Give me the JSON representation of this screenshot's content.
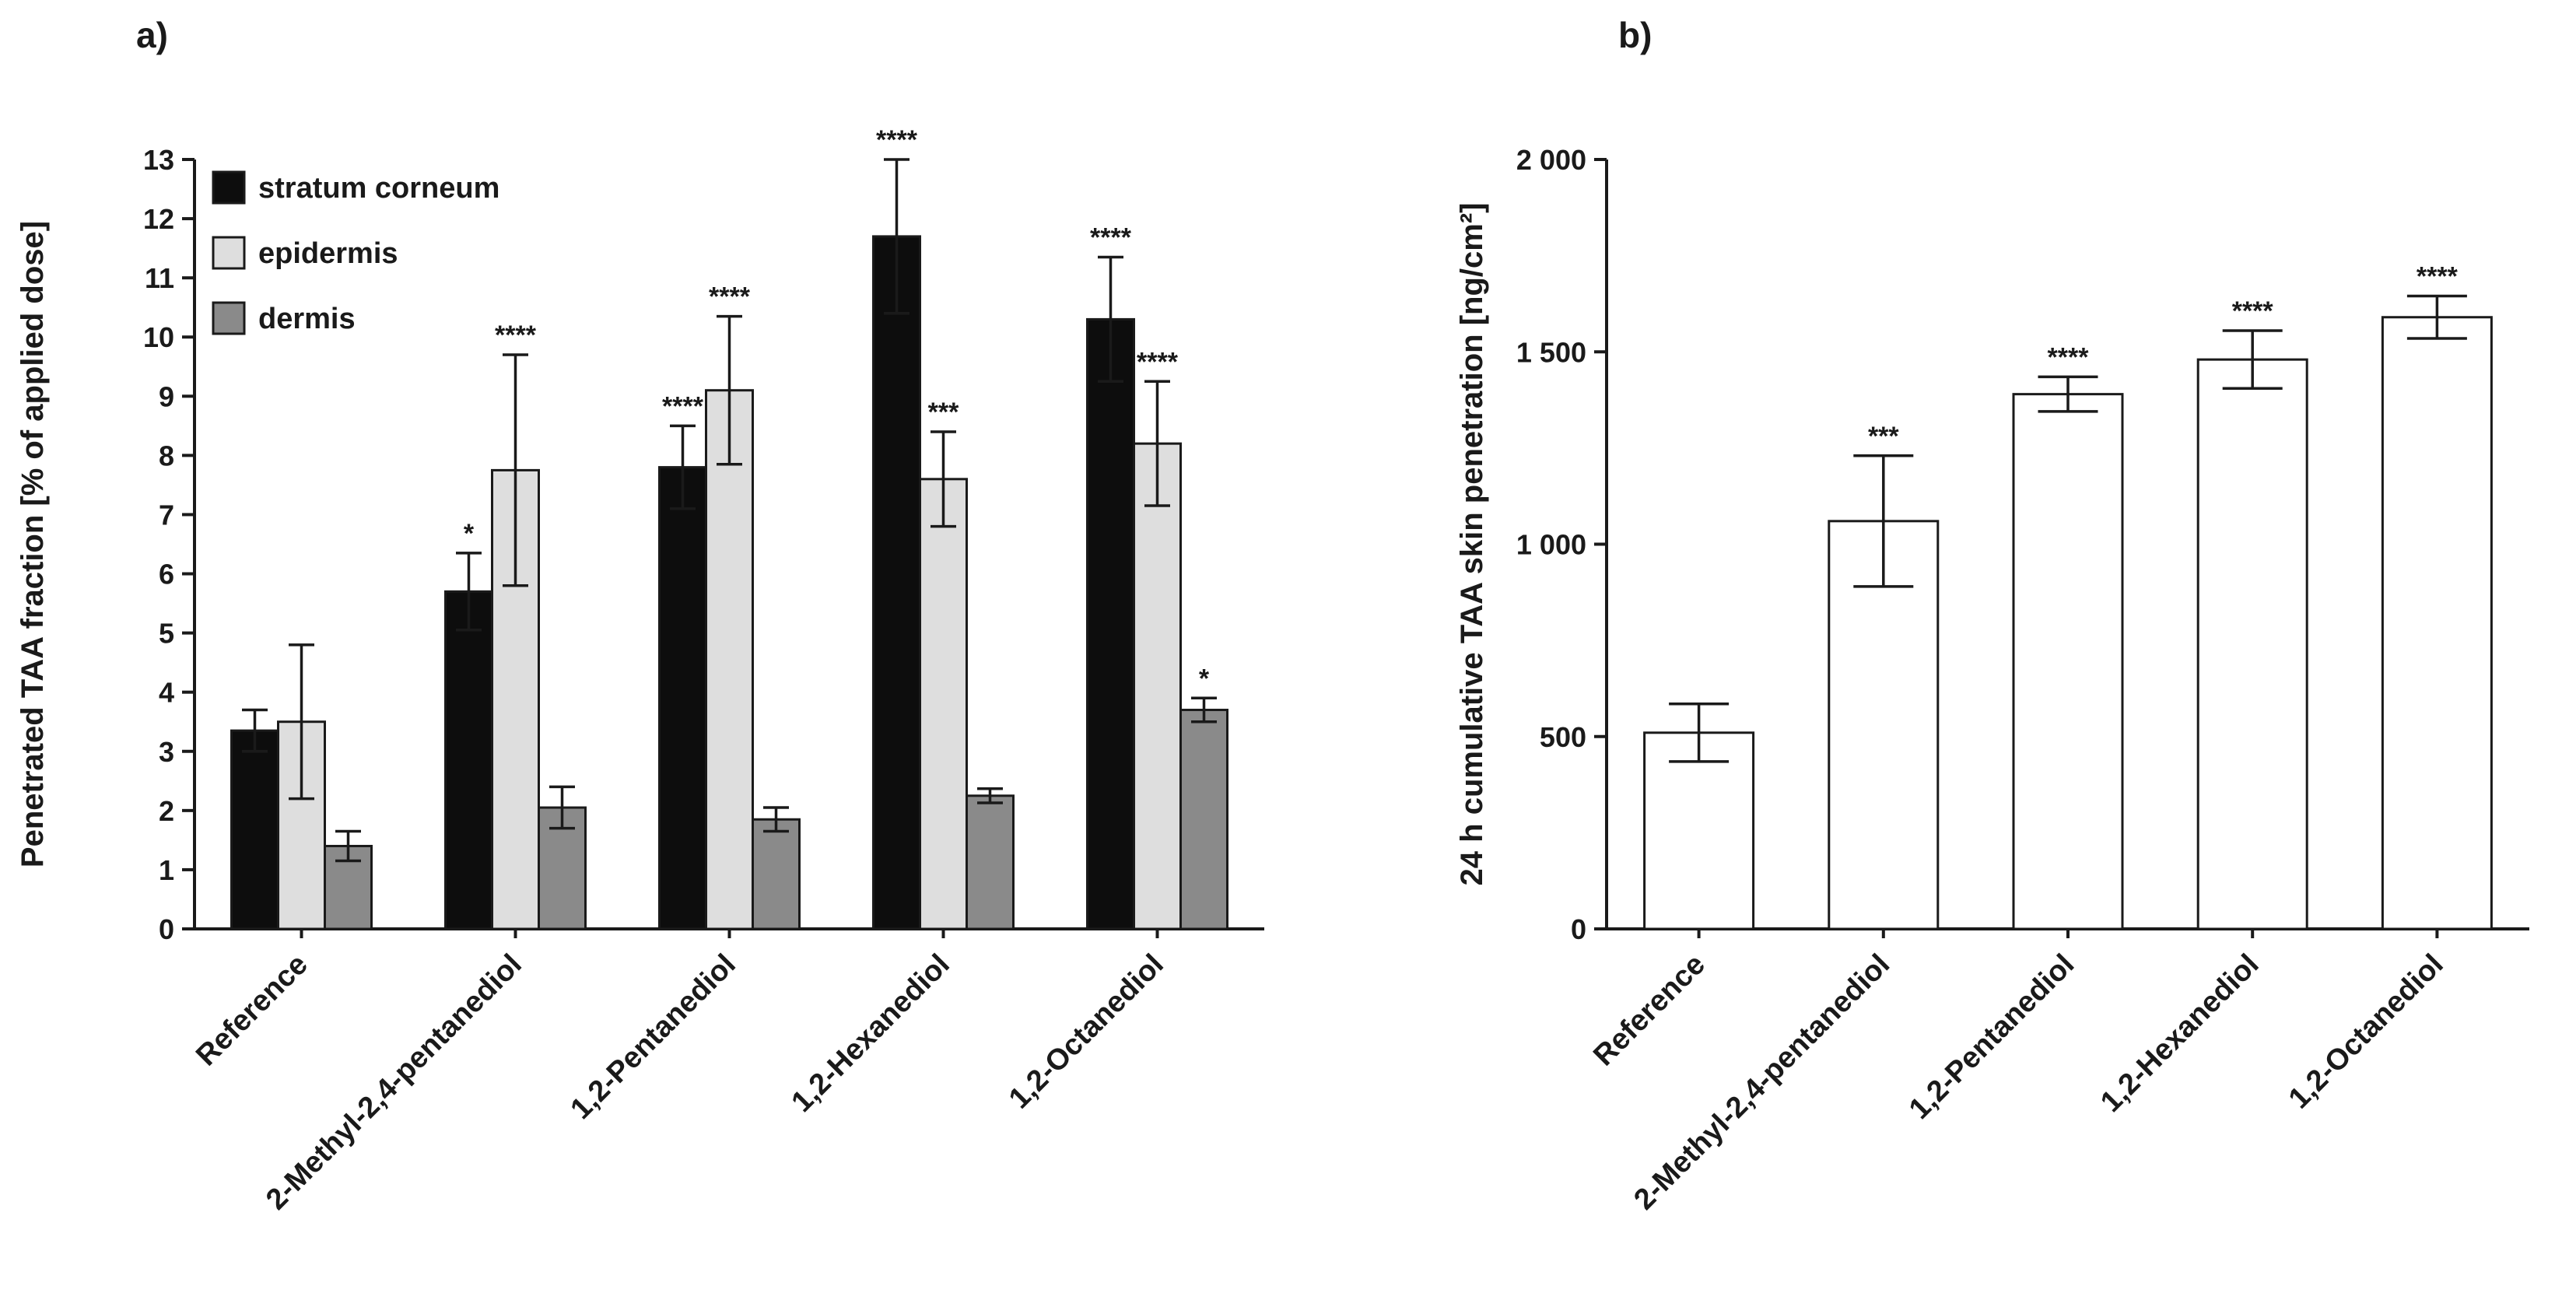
{
  "panels": [
    {
      "label": "a)"
    },
    {
      "label": "b)"
    }
  ],
  "chart_data": [
    {
      "type": "bar",
      "title": "",
      "ylabel": "Penetrated TAA fraction [% of applied dose]",
      "xlabel": "",
      "categories": [
        "Reference",
        "2-Methyl-2,4-pentanediol",
        "1,2-Pentanediol",
        "1,2-Hexanediol",
        "1,2-Octanediol"
      ],
      "series": [
        {
          "name": "stratum corneum",
          "color": "#0d0d0d",
          "values": [
            3.35,
            5.7,
            7.8,
            11.7,
            10.3
          ],
          "errors": [
            0.35,
            0.65,
            0.7,
            1.3,
            1.05
          ],
          "sig": [
            "",
            "*",
            "****",
            "****",
            "****"
          ]
        },
        {
          "name": "epidermis",
          "color": "#dedede",
          "values": [
            3.5,
            7.75,
            9.1,
            7.6,
            8.2
          ],
          "errors": [
            1.3,
            1.95,
            1.25,
            0.8,
            1.05
          ],
          "sig": [
            "",
            "****",
            "****",
            "***",
            "****"
          ]
        },
        {
          "name": "dermis",
          "color": "#8a8a8a",
          "values": [
            1.4,
            2.05,
            1.85,
            2.25,
            3.7
          ],
          "errors": [
            0.25,
            0.35,
            0.2,
            0.12,
            0.2
          ],
          "sig": [
            "",
            "",
            "",
            "",
            "*"
          ]
        }
      ],
      "ylim": [
        0,
        13
      ],
      "yticks": [
        0,
        1,
        2,
        3,
        4,
        5,
        6,
        7,
        8,
        9,
        10,
        11,
        12,
        13
      ],
      "grid": false,
      "legend_position": "top-left"
    },
    {
      "type": "bar",
      "title": "",
      "ylabel": "24 h cumulative TAA skin penetration [ng/cm²]",
      "xlabel": "",
      "categories": [
        "Reference",
        "2-Methyl-2,4-pentanediol",
        "1,2-Pentanediol",
        "1,2-Hexanediol",
        "1,2-Octanediol"
      ],
      "bar_color": "#ffffff",
      "values": [
        510,
        1060,
        1390,
        1480,
        1590
      ],
      "errors": [
        75,
        170,
        45,
        75,
        55
      ],
      "sig": [
        "",
        "***",
        "****",
        "****",
        "****"
      ],
      "ylim": [
        0,
        2000
      ],
      "yticks": [
        0,
        500,
        1000,
        1500,
        2000
      ],
      "ytick_labels": [
        "0",
        "500",
        "1 000",
        "1 500",
        "2 000"
      ],
      "grid": false,
      "legend_position": "none"
    }
  ]
}
